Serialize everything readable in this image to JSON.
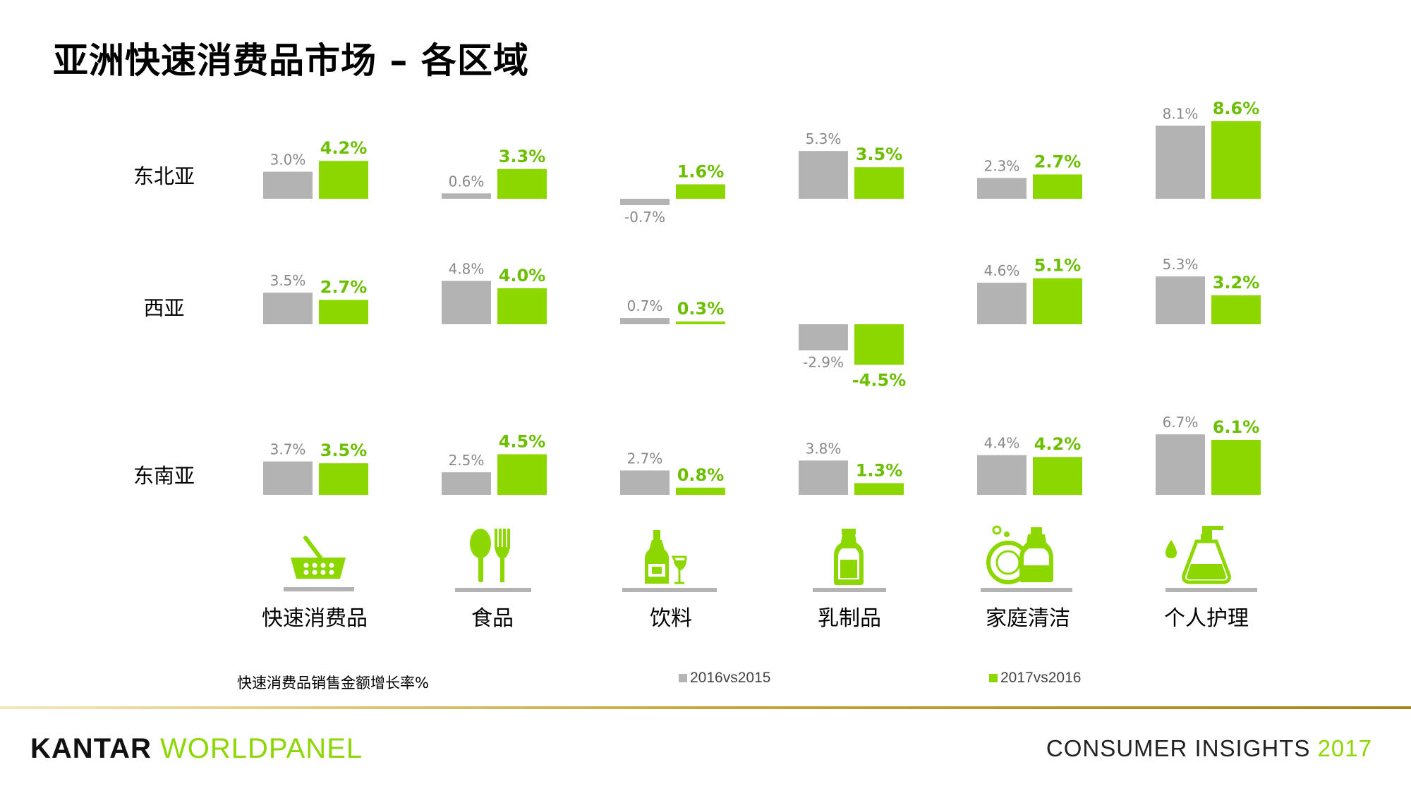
{
  "title": "亚洲快速消费品市场 – 各区域",
  "colors": {
    "grey": "#b3b3b3",
    "green": "#8cd700",
    "grey_text": "#888888",
    "green_text": "#6cbf00"
  },
  "chart_data": {
    "type": "bar",
    "title": "亚洲快速消费品市场 – 各区域",
    "ylabel": "快速消费品销售金额增长率%",
    "series_names": [
      "2016vs2015",
      "2017vs2016"
    ],
    "categories": [
      "快速消费品",
      "食品",
      "饮料",
      "乳制品",
      "家庭清洁",
      "个人护理"
    ],
    "regions": [
      {
        "name": "东北亚",
        "series": [
          {
            "name": "2016vs2015",
            "values": [
              3.0,
              0.6,
              -0.7,
              5.3,
              2.3,
              8.1
            ]
          },
          {
            "name": "2017vs2016",
            "values": [
              4.2,
              3.3,
              1.6,
              3.5,
              2.7,
              8.6
            ]
          }
        ],
        "labels": [
          [
            "3.0%",
            "0.6%",
            "-0.7%",
            "5.3%",
            "2.3%",
            "8.1%"
          ],
          [
            "4.2%",
            "3.3%",
            "1.6%",
            "3.5%",
            "2.7%",
            "8.6%"
          ]
        ]
      },
      {
        "name": "西亚",
        "series": [
          {
            "name": "2016vs2015",
            "values": [
              3.5,
              4.8,
              0.7,
              -2.9,
              4.6,
              5.3
            ]
          },
          {
            "name": "2017vs2016",
            "values": [
              2.7,
              4.0,
              0.3,
              -4.5,
              5.1,
              3.2
            ]
          }
        ],
        "labels": [
          [
            "3.5%",
            "4.8%",
            "0.7%",
            "-2.9%",
            "4.6%",
            "5.3%"
          ],
          [
            "2.7%",
            "4.0%",
            "0.3%",
            "-4.5%",
            "5.1%",
            "3.2%"
          ]
        ]
      },
      {
        "name": "东南亚",
        "series": [
          {
            "name": "2016vs2015",
            "values": [
              3.7,
              2.5,
              2.7,
              3.8,
              4.4,
              6.7
            ]
          },
          {
            "name": "2017vs2016",
            "values": [
              3.5,
              4.5,
              0.8,
              1.3,
              4.2,
              6.1
            ]
          }
        ],
        "labels": [
          [
            "3.7%",
            "2.5%",
            "2.7%",
            "3.8%",
            "4.4%",
            "6.7%"
          ],
          [
            "3.5%",
            "4.5%",
            "0.8%",
            "1.3%",
            "4.2%",
            "6.1%"
          ]
        ]
      }
    ]
  },
  "category_icons": [
    "basket-icon",
    "spoon-fork-icon",
    "wine-bottle-glass-icon",
    "milk-bottle-icon",
    "dish-soap-icon",
    "lotion-pump-icon"
  ],
  "legend": [
    {
      "label": "2016vs2015",
      "color": "#b3b3b3"
    },
    {
      "label": "2017vs2016",
      "color": "#8cd700"
    }
  ],
  "footnote": "快速消费品销售金额增长率%",
  "footer": {
    "brand_kantar": "KANTAR",
    "brand_worldpanel": "WORLDPANEL",
    "insights_text": "CONSUMER INSIGHTS",
    "insights_year": "2017"
  }
}
